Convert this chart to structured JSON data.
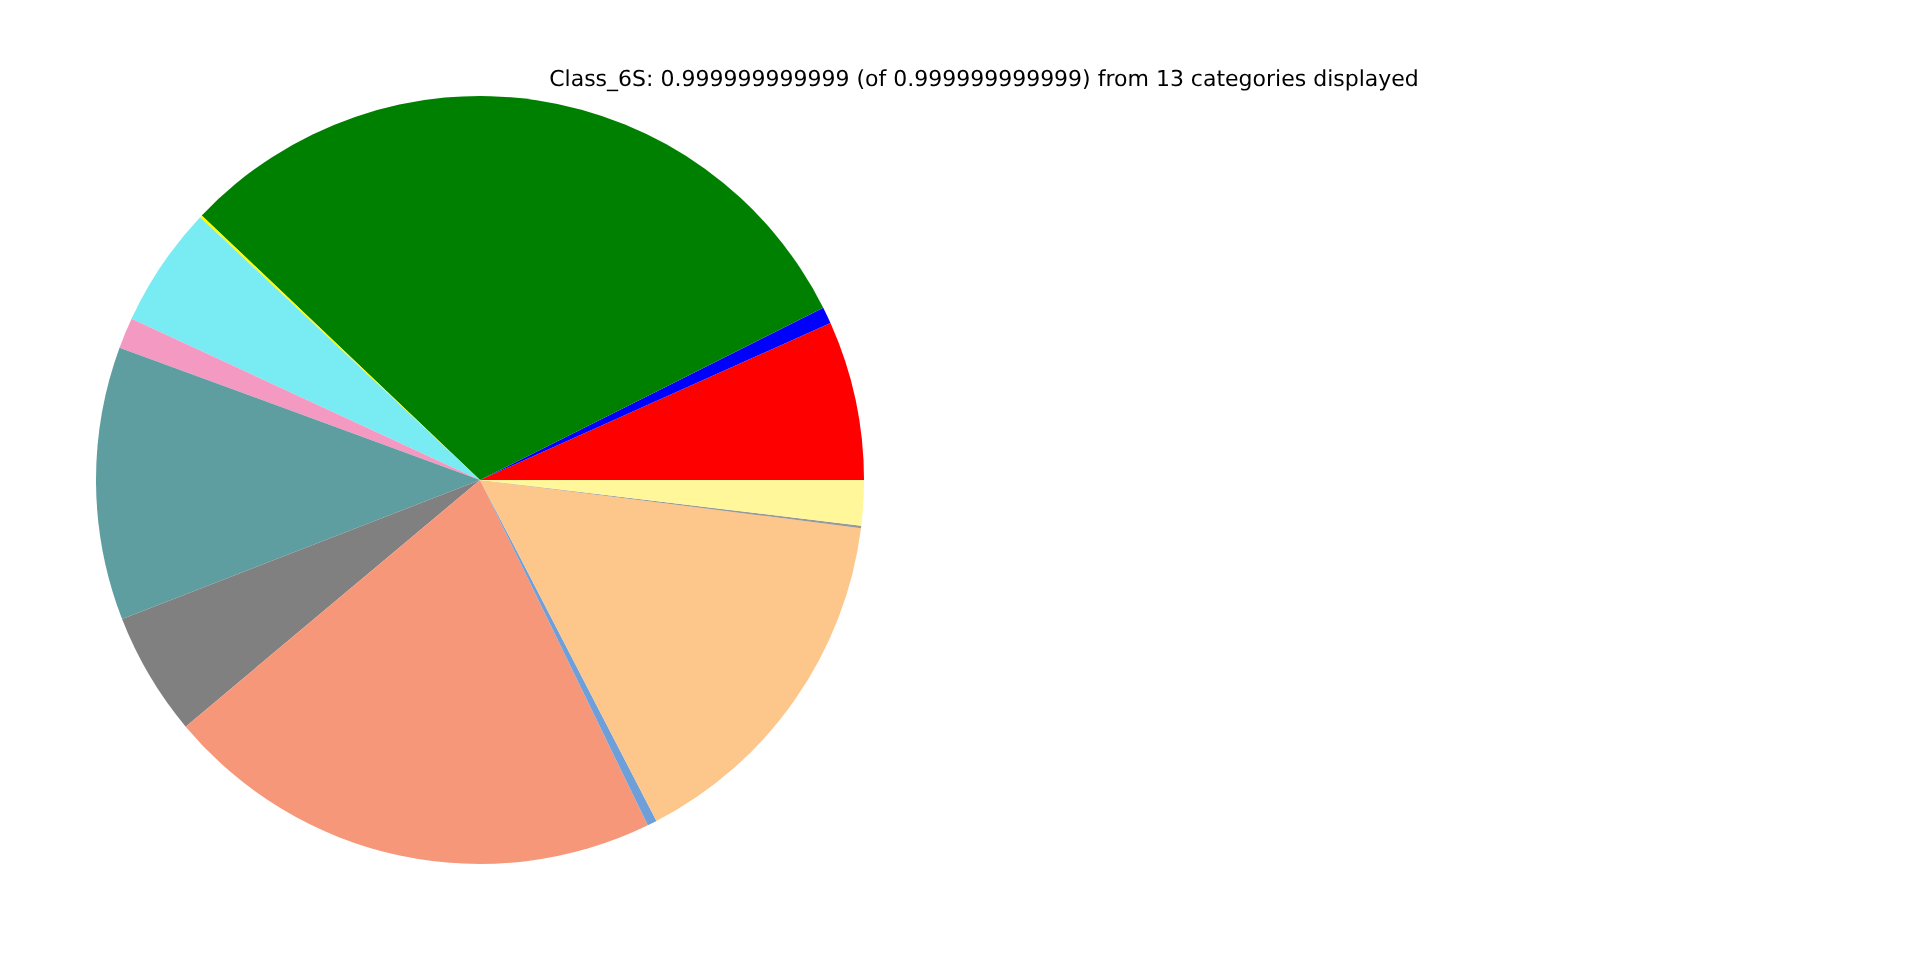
{
  "chart_data": {
    "type": "pie",
    "title": "Class_6S: 0.999999999999 (of 0.999999999999) from 13 categories displayed",
    "categories": [
      null,
      null,
      null,
      null,
      null,
      null,
      null,
      null,
      null,
      null,
      null,
      null,
      null
    ],
    "values": [
      6.7,
      0.7,
      30.5,
      0.1,
      5.1,
      1.3,
      11.5,
      5.2,
      21.1,
      0.4,
      15.4,
      0.1,
      1.9
    ],
    "colors": [
      "#ff0000",
      "#0000ff",
      "#008000",
      "#ffff00",
      "#79ebf2",
      "#f49ac2",
      "#5f9ea0",
      "#808080",
      "#f7977a",
      "#6f9fd8",
      "#fdc68a",
      "#999999",
      "#fff79a"
    ]
  }
}
